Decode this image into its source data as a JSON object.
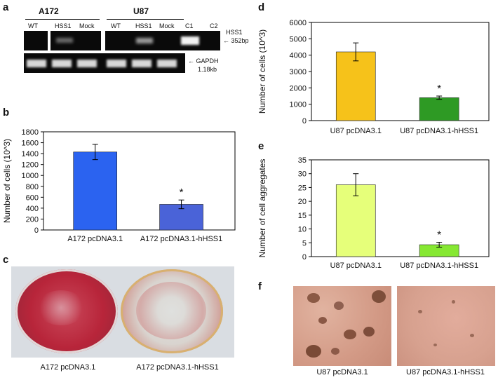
{
  "panel_letters": {
    "a": "a",
    "b": "b",
    "c": "c",
    "d": "d",
    "e": "e",
    "f": "f"
  },
  "gel": {
    "group_a172": "A172",
    "group_u87": "U87",
    "lanes": [
      "WT",
      "HSS1",
      "Mock",
      "WT",
      "HSS1",
      "Mock",
      "C1",
      "C2"
    ],
    "hss1_label_1": "HSS1",
    "hss1_label_2": "352bp",
    "gapdh_label_1": "GAPDH",
    "gapdh_label_2": "1.18kb",
    "arrow": "←"
  },
  "captions": {
    "c_left": "A172 pcDNA3.1",
    "c_right": "A172 pcDNA3.1-hHSS1",
    "f_left": "U87 pcDNA3.1",
    "f_right": "U87 pcDNA3.1-hHSS1"
  },
  "colors": {
    "b_bar1": "#2b63f0",
    "b_bar2": "#4a63d8",
    "d_bar1": "#f6c21a",
    "d_bar2": "#2e9a24",
    "e_bar1": "#e6ff7a",
    "e_bar2": "#86e832",
    "plate_red": "#b8253a",
    "micro_bg": "#d9a28c"
  },
  "chart_data": [
    {
      "id": "b",
      "type": "bar",
      "categories": [
        "A172 pcDNA3.1",
        "A172 pcDNA3.1-hHSS1"
      ],
      "values": [
        1430,
        470
      ],
      "errors": [
        140,
        80
      ],
      "ylabel": "Number of cells (10^3)",
      "ylim": [
        0,
        1800
      ],
      "yticks": [
        0,
        200,
        400,
        600,
        800,
        1000,
        1200,
        1400,
        1600,
        1800
      ],
      "significance": [
        "",
        "*"
      ]
    },
    {
      "id": "d",
      "type": "bar",
      "categories": [
        "U87 pcDNA3.1",
        "U87 pcDNA3.1-hHSS1"
      ],
      "values": [
        4200,
        1400
      ],
      "errors": [
        550,
        100
      ],
      "ylabel": "Number of cells (10^3)",
      "ylim": [
        0,
        6000
      ],
      "yticks": [
        0,
        1000,
        2000,
        3000,
        4000,
        5000,
        6000
      ],
      "significance": [
        "",
        "*"
      ]
    },
    {
      "id": "e",
      "type": "bar",
      "categories": [
        "U87 pcDNA3.1",
        "U87 pcDNA3.1-hHSS1"
      ],
      "values": [
        26,
        4.3
      ],
      "errors": [
        4,
        0.9
      ],
      "ylabel": "Number of cell aggregates",
      "ylim": [
        0,
        35
      ],
      "yticks": [
        0,
        5,
        10,
        15,
        20,
        25,
        30,
        35
      ],
      "significance": [
        "",
        "*"
      ]
    }
  ]
}
